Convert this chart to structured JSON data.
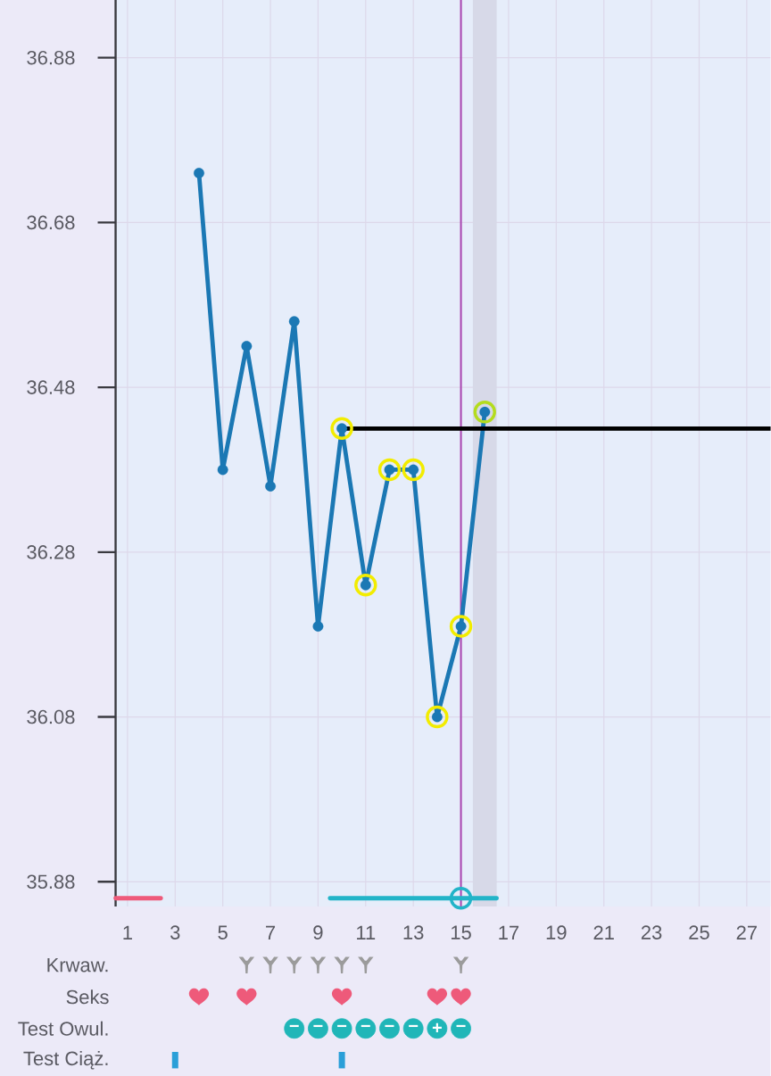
{
  "chart_data": [
    {
      "type": "line",
      "xlim": [
        0.5,
        28
      ],
      "xticks": [
        1,
        3,
        5,
        7,
        9,
        11,
        13,
        15,
        17,
        19,
        21,
        23,
        25,
        27
      ],
      "ylim": [
        35.85,
        36.95
      ],
      "yticks": [
        35.88,
        36.08,
        36.28,
        36.48,
        36.68,
        36.88
      ],
      "tick_labels": "y",
      "grid": true,
      "marker": "circle",
      "series": [
        {
          "color": "#1b78b4",
          "x": [
            4,
            5,
            6,
            7,
            8,
            9,
            10,
            11,
            12,
            13,
            14,
            15,
            16
          ],
          "values": [
            36.74,
            36.38,
            36.53,
            36.36,
            36.56,
            36.19,
            36.43,
            36.24,
            36.38,
            36.38,
            36.08,
            36.19,
            36.45
          ]
        },
        {
          "type": "line",
          "color": "#000000",
          "x": [
            10,
            28
          ],
          "values": [
            36.43,
            36.43
          ],
          "marker": "none"
        },
        {
          "type": "scatter",
          "color": "#f2ec00",
          "x": [
            10,
            11,
            12,
            13,
            14,
            15
          ],
          "values": [
            36.43,
            36.24,
            36.38,
            36.38,
            36.08,
            36.19
          ]
        },
        {
          "type": "scatter",
          "color": "#b4dc1e",
          "x": [
            16
          ],
          "values": [
            36.45
          ]
        },
        {
          "type": "line",
          "color": "#ee5a7a",
          "x": [
            0.5,
            2.4
          ],
          "values": [
            35.86,
            35.86
          ],
          "marker": "none"
        },
        {
          "type": "line",
          "color": "#22b4c8",
          "x": [
            9.5,
            16.5
          ],
          "values": [
            35.86,
            35.86
          ],
          "marker": "none"
        },
        {
          "type": "scatter",
          "color": "#22b4c8",
          "x": [
            15
          ],
          "values": [
            35.86
          ]
        }
      ],
      "ref_lines": [
        {
          "axis": "x",
          "value": 15,
          "color": "#a844b0"
        }
      ],
      "bands": [
        {
          "axis": "x",
          "from": 15.5,
          "to": 16.5,
          "color": "#d7d9e8"
        }
      ]
    },
    {
      "type": "scatter",
      "orientation": "horizontal",
      "categories": [
        "Krwaw.",
        "Seks",
        "Test Owul.",
        "Test Ciąż."
      ],
      "xlim": [
        1,
        28
      ],
      "xticks": [
        1,
        3,
        5,
        7,
        9,
        11,
        13,
        15,
        17,
        19,
        21,
        23,
        25,
        27
      ],
      "series": [
        {
          "color": "#9b9b9b",
          "x": [
            "Krwaw.",
            "Krwaw.",
            "Krwaw.",
            "Krwaw.",
            "Krwaw.",
            "Krwaw.",
            "Krwaw."
          ],
          "values": [
            6,
            7,
            8,
            9,
            10,
            11,
            15
          ]
        },
        {
          "color": "#ee5a7a",
          "x": [
            "Seks",
            "Seks",
            "Seks",
            "Seks",
            "Seks"
          ],
          "values": [
            4,
            6,
            10,
            14,
            15
          ]
        },
        {
          "color": "#20b6b8",
          "marker": "circle",
          "x": [
            "Test Owul.",
            "Test Owul.",
            "Test Owul.",
            "Test Owul.",
            "Test Owul.",
            "Test Owul.",
            "Test Owul.",
            "Test Owul."
          ],
          "values": [
            8,
            9,
            10,
            11,
            12,
            13,
            14,
            15
          ],
          "value_labels": [
            "−",
            "−",
            "−",
            "−",
            "−",
            "−",
            "+",
            "−"
          ]
        },
        {
          "color": "#2a9fd8",
          "x": [
            "Test Ciąż.",
            "Test Ciąż."
          ],
          "values": [
            3,
            10
          ]
        }
      ]
    }
  ]
}
